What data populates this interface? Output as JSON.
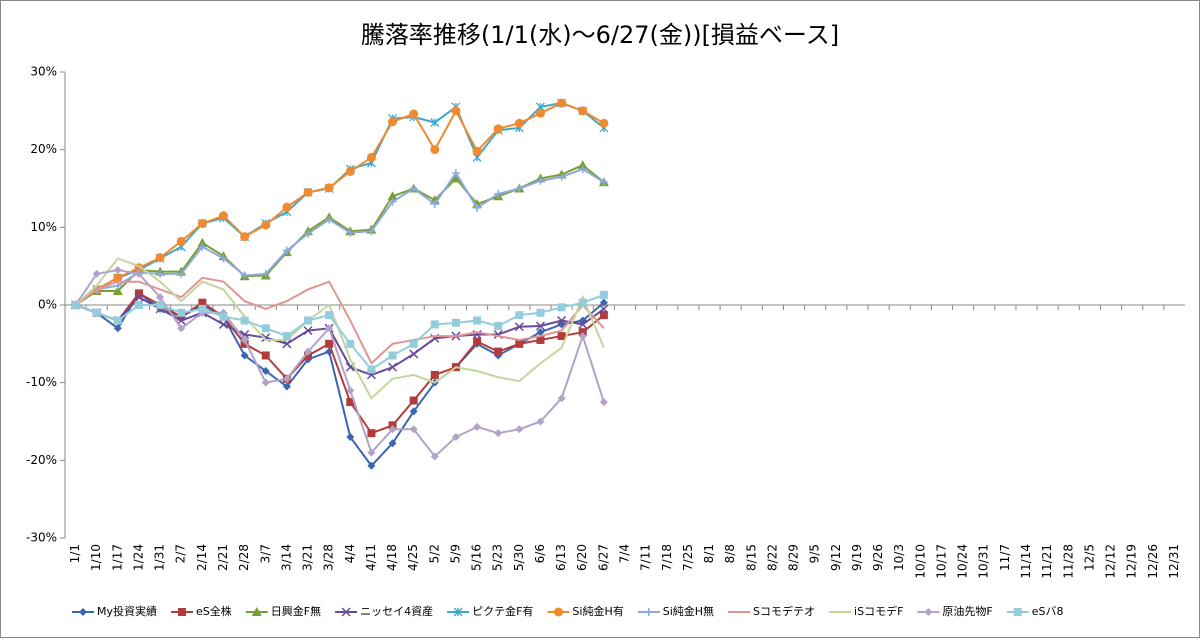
{
  "chart_data": {
    "type": "line",
    "title": "騰落率推移(1/1(水)～6/27(金))[損益ベース]",
    "categories": [
      "1/1",
      "1/10",
      "1/17",
      "1/24",
      "1/31",
      "2/7",
      "2/14",
      "2/21",
      "2/28",
      "3/7",
      "3/14",
      "3/21",
      "3/28",
      "4/4",
      "4/11",
      "4/18",
      "4/25",
      "5/2",
      "5/9",
      "5/16",
      "5/23",
      "5/30",
      "6/6",
      "6/13",
      "6/20",
      "6/27",
      "7/4",
      "7/11",
      "7/18",
      "7/25",
      "8/1",
      "8/8",
      "8/15",
      "8/22",
      "8/29",
      "9/5",
      "9/12",
      "9/19",
      "9/26",
      "10/3",
      "10/10",
      "10/17",
      "10/24",
      "10/31",
      "11/7",
      "11/14",
      "11/21",
      "11/28",
      "12/5",
      "12/12",
      "12/19",
      "12/26",
      "12/31"
    ],
    "ylim": [
      -30,
      30
    ],
    "yticks": [
      {
        "value": -30,
        "label": "-30%"
      },
      {
        "value": -20,
        "label": "-20%"
      },
      {
        "value": -10,
        "label": "-10%"
      },
      {
        "value": 0,
        "label": "0%"
      },
      {
        "value": 10,
        "label": "10%"
      },
      {
        "value": 20,
        "label": "20%"
      },
      {
        "value": 30,
        "label": "30%"
      }
    ],
    "grid": false,
    "legend": "bottom",
    "series": [
      {
        "name": "My投資実績",
        "color": "#3a67b0",
        "marker": "diamond",
        "values": [
          0,
          -1,
          -3,
          1.5,
          -0.5,
          -1.5,
          0,
          -1.5,
          -6.5,
          -8.5,
          -10.5,
          -7,
          -6,
          -17,
          -20.7,
          -17.8,
          -13.7,
          -10,
          -8,
          -5,
          -6.5,
          -5,
          -3.5,
          -2.5,
          -2,
          0.3,
          null,
          null,
          null,
          null,
          null,
          null,
          null,
          null,
          null,
          null,
          null,
          null,
          null,
          null,
          null,
          null,
          null,
          null,
          null,
          null,
          null,
          null,
          null,
          null,
          null,
          null,
          null
        ]
      },
      {
        "name": "eS全株",
        "color": "#b23b3b",
        "marker": "square",
        "values": [
          0,
          -1,
          -2,
          1.5,
          0,
          -1.5,
          0.3,
          -1.5,
          -5,
          -6.5,
          -9.5,
          -6.5,
          -5,
          -12.5,
          -16.5,
          -15.5,
          -12.3,
          -9,
          -8,
          -4.7,
          -6,
          -5,
          -4.5,
          -4,
          -3.5,
          -1.3,
          null,
          null,
          null,
          null,
          null,
          null,
          null,
          null,
          null,
          null,
          null,
          null,
          null,
          null,
          null,
          null,
          null,
          null,
          null,
          null,
          null,
          null,
          null,
          null,
          null,
          null,
          null
        ]
      },
      {
        "name": "日興金F無",
        "color": "#77a032",
        "marker": "triangle",
        "values": [
          0,
          1.8,
          1.8,
          4.5,
          4.3,
          4.3,
          8,
          6.3,
          3.7,
          3.8,
          6.8,
          9.5,
          11.3,
          9.5,
          9.7,
          14,
          15,
          13.5,
          16.3,
          13,
          14,
          15,
          16.3,
          16.8,
          18,
          15.8,
          null,
          null,
          null,
          null,
          null,
          null,
          null,
          null,
          null,
          null,
          null,
          null,
          null,
          null,
          null,
          null,
          null,
          null,
          null,
          null,
          null,
          null,
          null,
          null,
          null,
          null,
          null
        ]
      },
      {
        "name": "ニッセイ4資産",
        "color": "#6a4a9a",
        "marker": "x",
        "values": [
          0,
          -1,
          -2,
          1,
          -0.5,
          -2,
          -1,
          -2.5,
          -3.8,
          -4.2,
          -5,
          -3.3,
          -3,
          -8,
          -9,
          -8,
          -6.3,
          -4.3,
          -4,
          -3.8,
          -3.8,
          -2.8,
          -2.7,
          -2,
          -2.5,
          -0.5,
          null,
          null,
          null,
          null,
          null,
          null,
          null,
          null,
          null,
          null,
          null,
          null,
          null,
          null,
          null,
          null,
          null,
          null,
          null,
          null,
          null,
          null,
          null,
          null,
          null,
          null,
          null
        ]
      },
      {
        "name": "ピクテ金F有",
        "color": "#40a8c4",
        "marker": "star",
        "values": [
          0,
          2,
          3.5,
          4.5,
          6,
          7.5,
          10.5,
          11.2,
          8.8,
          10.5,
          12,
          14.5,
          15,
          17.5,
          18.3,
          24,
          24.2,
          23.5,
          25.5,
          19,
          22.5,
          22.8,
          25.5,
          26,
          25,
          22.8,
          null,
          null,
          null,
          null,
          null,
          null,
          null,
          null,
          null,
          null,
          null,
          null,
          null,
          null,
          null,
          null,
          null,
          null,
          null,
          null,
          null,
          null,
          null,
          null,
          null,
          null,
          null
        ]
      },
      {
        "name": "Si純金H有",
        "color": "#f08a30",
        "marker": "circle",
        "values": [
          0,
          2,
          3.5,
          4.8,
          6.1,
          8.2,
          10.5,
          11.5,
          8.8,
          10.3,
          12.6,
          14.5,
          15.1,
          17.2,
          19,
          23.6,
          24.6,
          20,
          25,
          19.8,
          22.7,
          23.4,
          24.7,
          26,
          25,
          23.4,
          null,
          null,
          null,
          null,
          null,
          null,
          null,
          null,
          null,
          null,
          null,
          null,
          null,
          null,
          null,
          null,
          null,
          null,
          null,
          null,
          null,
          null,
          null,
          null,
          null,
          null,
          null
        ]
      },
      {
        "name": "Si純金H無",
        "color": "#8fa8dc",
        "marker": "plus",
        "values": [
          0,
          2,
          2.5,
          4.2,
          4,
          4,
          7.5,
          6,
          3.8,
          4,
          7,
          9.2,
          11,
          9.3,
          9.5,
          13.3,
          15,
          13,
          17,
          12.5,
          14.3,
          15,
          16,
          16.5,
          17.5,
          15.8,
          null,
          null,
          null,
          null,
          null,
          null,
          null,
          null,
          null,
          null,
          null,
          null,
          null,
          null,
          null,
          null,
          null,
          null,
          null,
          null,
          null,
          null,
          null,
          null,
          null,
          null,
          null
        ]
      },
      {
        "name": "Sコモデテオ",
        "color": "#e09494",
        "marker": "none",
        "values": [
          0,
          2,
          3,
          3,
          2,
          1,
          3.5,
          3,
          0.5,
          -0.5,
          0.5,
          2,
          3,
          -2,
          -7.5,
          -5,
          -4.5,
          -4,
          -4,
          -3.5,
          -4,
          -4.5,
          -4,
          -3.3,
          0,
          -3,
          null,
          null,
          null,
          null,
          null,
          null,
          null,
          null,
          null,
          null,
          null,
          null,
          null,
          null,
          null,
          null,
          null,
          null,
          null,
          null,
          null,
          null,
          null,
          null,
          null,
          null,
          null
        ]
      },
      {
        "name": "iSコモデF",
        "color": "#c3d69b",
        "marker": "none",
        "values": [
          0,
          2.5,
          6,
          5,
          3,
          0.5,
          3,
          2,
          -1.5,
          -4.5,
          -4.5,
          -2,
          0,
          -7,
          -12,
          -9.5,
          -9,
          -10,
          -8,
          -8.5,
          -9.3,
          -9.8,
          -7.5,
          -5.5,
          1,
          -5.5,
          null,
          null,
          null,
          null,
          null,
          null,
          null,
          null,
          null,
          null,
          null,
          null,
          null,
          null,
          null,
          null,
          null,
          null,
          null,
          null,
          null,
          null,
          null,
          null,
          null,
          null,
          null
        ]
      },
      {
        "name": "原油先物F",
        "color": "#b3a2c7",
        "marker": "diamond",
        "values": [
          0,
          4,
          4.5,
          4,
          1,
          -3,
          -1,
          -1,
          -4.5,
          -10,
          -9.5,
          -6,
          -3,
          -11,
          -19,
          -16,
          -16,
          -19.5,
          -17,
          -15.7,
          -16.5,
          -16,
          -15,
          -12,
          -4,
          -12.5,
          null,
          null,
          null,
          null,
          null,
          null,
          null,
          null,
          null,
          null,
          null,
          null,
          null,
          null,
          null,
          null,
          null,
          null,
          null,
          null,
          null,
          null,
          null,
          null,
          null,
          null,
          null
        ]
      },
      {
        "name": "eSバ8",
        "color": "#93cddd",
        "marker": "square",
        "values": [
          0,
          -1,
          -2,
          0,
          0,
          -1,
          -0.5,
          -1.5,
          -2,
          -3,
          -4,
          -2,
          -1.3,
          -5,
          -8.3,
          -6.5,
          -5,
          -2.5,
          -2.3,
          -2,
          -2.7,
          -1.3,
          -1,
          -0.3,
          0.3,
          1.3,
          null,
          null,
          null,
          null,
          null,
          null,
          null,
          null,
          null,
          null,
          null,
          null,
          null,
          null,
          null,
          null,
          null,
          null,
          null,
          null,
          null,
          null,
          null,
          null,
          null,
          null,
          null
        ]
      }
    ]
  }
}
